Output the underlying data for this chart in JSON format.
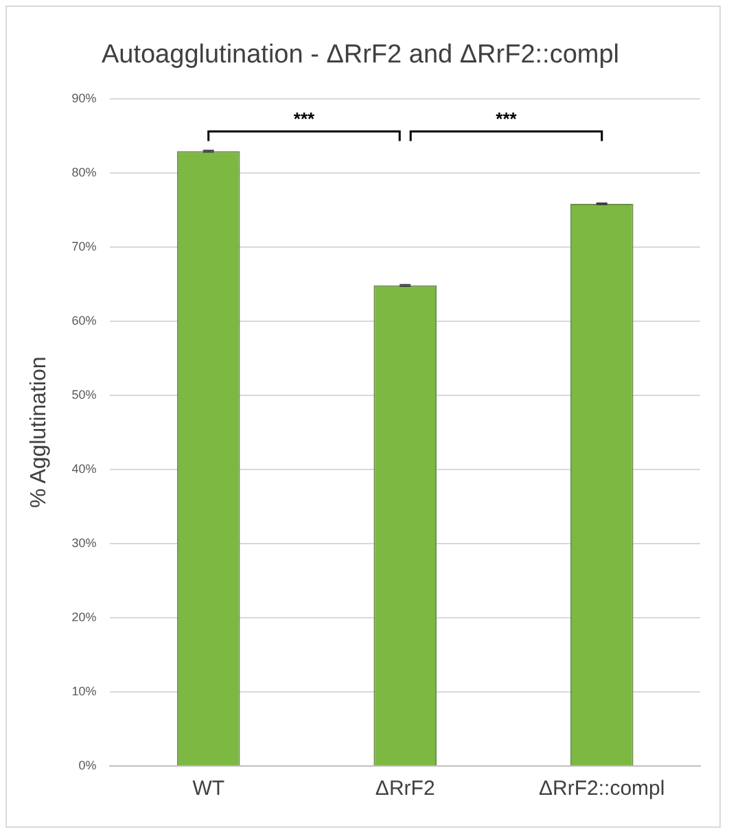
{
  "chart_data": {
    "type": "bar",
    "title": "Autoagglutination - ΔRrF2 and ΔRrF2::compl",
    "ylabel": "% Agglutination",
    "categories": [
      "WT",
      "ΔRrF2",
      "ΔRrF2::compl"
    ],
    "values": [
      82.9,
      64.8,
      75.8
    ],
    "errors": [
      0.1,
      0.1,
      0.1
    ],
    "color": "#7cb842",
    "ylim": [
      0,
      90
    ],
    "yticks": [
      {
        "value": 0,
        "label": "0%"
      },
      {
        "value": 10,
        "label": "10%"
      },
      {
        "value": 20,
        "label": "20%"
      },
      {
        "value": 30,
        "label": "30%"
      },
      {
        "value": 40,
        "label": "40%"
      },
      {
        "value": 50,
        "label": "50%"
      },
      {
        "value": 60,
        "label": "60%"
      },
      {
        "value": 70,
        "label": "70%"
      },
      {
        "value": 80,
        "label": "80%"
      },
      {
        "value": 90,
        "label": "90%"
      }
    ],
    "grid": "y",
    "annotations": [
      "***",
      "***"
    ]
  }
}
